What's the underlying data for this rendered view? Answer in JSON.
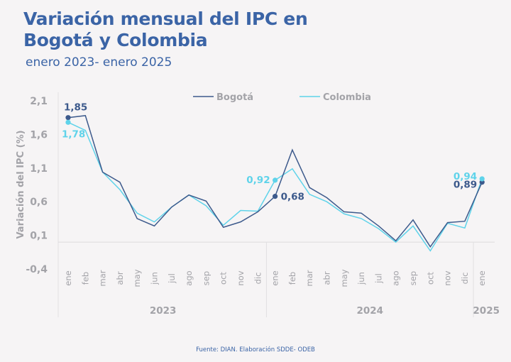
{
  "title_line1": "Variación mensual del IPC en",
  "title_line2": "Bogotá y Colombia",
  "subtitle": "enero 2023- enero 2025",
  "footer": "Fuente: DIAN. Elaboración SDDE- ODEB",
  "colors": {
    "bogota": "#3d5a8c",
    "colombia": "#5fd3ea",
    "axis_text": "#a3a3a8",
    "title": "#3b64a6"
  },
  "chart_data": {
    "type": "line",
    "title": "Variación mensual del IPC en Bogotá y Colombia",
    "subtitle": "enero 2023- enero 2025",
    "xlabel": "",
    "ylabel": "Variación del IPC (%)",
    "ylim": [
      -0.4,
      2.1
    ],
    "yticks": [
      "2,1",
      "1,6",
      "1,1",
      "0,6",
      "0,1",
      "-0,4"
    ],
    "ytick_values": [
      2.1,
      1.6,
      1.1,
      0.6,
      0.1,
      -0.4
    ],
    "grid": false,
    "legend": "top-center",
    "categories": [
      "ene",
      "feb",
      "mar",
      "abr",
      "may",
      "jun",
      "jul",
      "ago",
      "sep",
      "oct",
      "nov",
      "dic",
      "ene",
      "feb",
      "mar",
      "abr",
      "may",
      "jun",
      "jul",
      "ago",
      "sep",
      "oct",
      "nov",
      "dic",
      "ene"
    ],
    "year_groups": [
      {
        "label": "2023",
        "count": 12
      },
      {
        "label": "2024",
        "count": 12
      },
      {
        "label": "2025",
        "count": 1
      }
    ],
    "series": [
      {
        "name": "Bogotá",
        "values": [
          1.85,
          1.88,
          1.04,
          0.89,
          0.35,
          0.24,
          0.52,
          0.7,
          0.61,
          0.22,
          0.3,
          0.45,
          0.68,
          1.37,
          0.81,
          0.66,
          0.45,
          0.43,
          0.24,
          0.02,
          0.33,
          -0.07,
          0.29,
          0.31,
          0.89
        ],
        "labels": [
          {
            "index": 0,
            "text": "1,85"
          },
          {
            "index": 12,
            "text": "0,68"
          },
          {
            "index": 24,
            "text": "0,89"
          }
        ]
      },
      {
        "name": "Colombia",
        "values": [
          1.78,
          1.66,
          1.04,
          0.78,
          0.43,
          0.3,
          0.52,
          0.7,
          0.54,
          0.25,
          0.47,
          0.46,
          0.92,
          1.09,
          0.71,
          0.6,
          0.42,
          0.35,
          0.2,
          0.0,
          0.24,
          -0.13,
          0.28,
          0.21,
          0.94
        ],
        "labels": [
          {
            "index": 0,
            "text": "1,78"
          },
          {
            "index": 12,
            "text": "0,92"
          },
          {
            "index": 24,
            "text": "0,94"
          }
        ]
      }
    ]
  }
}
